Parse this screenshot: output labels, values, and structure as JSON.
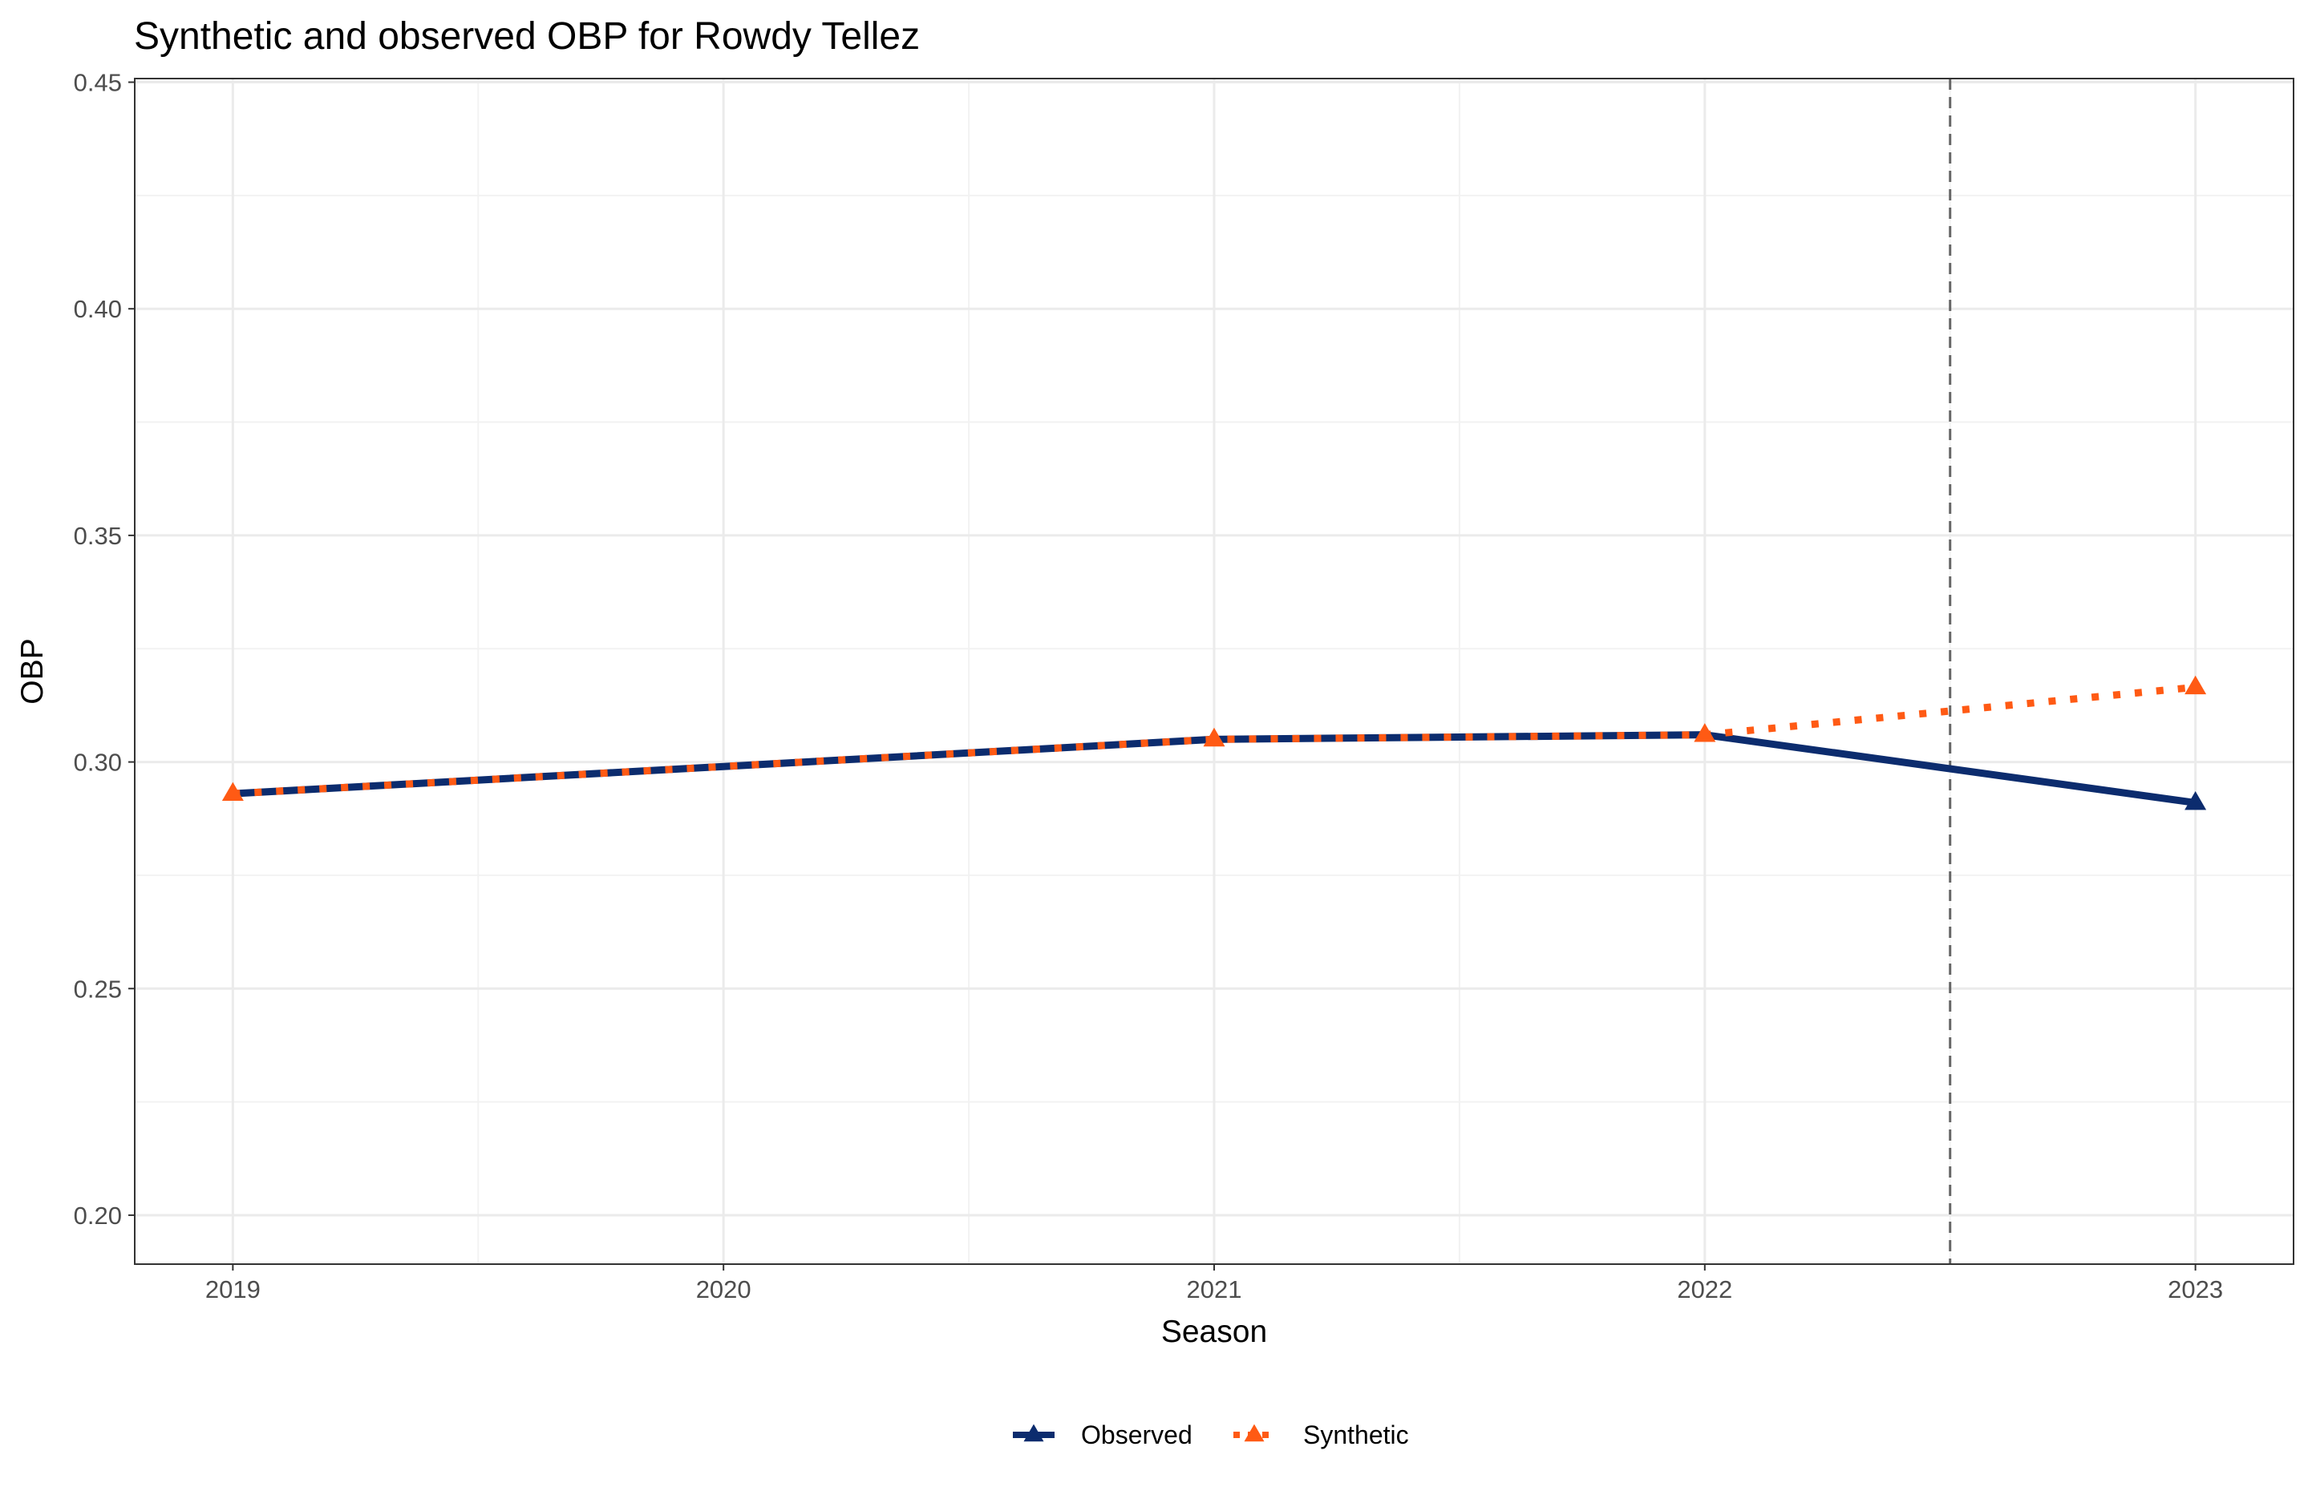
{
  "chart_data": {
    "type": "line",
    "title": "Synthetic and observed OBP for Rowdy Tellez",
    "xlabel": "Season",
    "ylabel": "OBP",
    "x": [
      2019,
      2020,
      2021,
      2022,
      2023
    ],
    "x_tick_labels": [
      "2019",
      "2020",
      "2021",
      "2022",
      "2023"
    ],
    "y_tick_values": [
      0.2,
      0.25,
      0.3,
      0.35,
      0.4,
      0.45
    ],
    "y_tick_labels": [
      "0.20",
      "0.25",
      "0.30",
      "0.35",
      "0.40",
      "0.45"
    ],
    "xlim": [
      2018.8,
      2023.2
    ],
    "ylim": [
      0.1892,
      0.4508
    ],
    "grid": true,
    "legend_position": "bottom",
    "treatment_line_x": 2022.5,
    "series": [
      {
        "name": "Observed",
        "color": "#0c2c6e",
        "line_style": "solid",
        "marker": "triangle",
        "marker_x": [
          2023
        ],
        "x": [
          2019,
          2020,
          2021,
          2022,
          2023
        ],
        "values": [
          0.293,
          0.299,
          0.305,
          0.306,
          0.291
        ]
      },
      {
        "name": "Synthetic",
        "color": "#ff5a14",
        "line_style": "dotted",
        "marker": "triangle",
        "marker_x": [
          2019,
          2021,
          2022,
          2023
        ],
        "x": [
          2019,
          2020,
          2021,
          2022,
          2023
        ],
        "values": [
          0.293,
          0.299,
          0.305,
          0.306,
          0.3165
        ]
      }
    ]
  }
}
